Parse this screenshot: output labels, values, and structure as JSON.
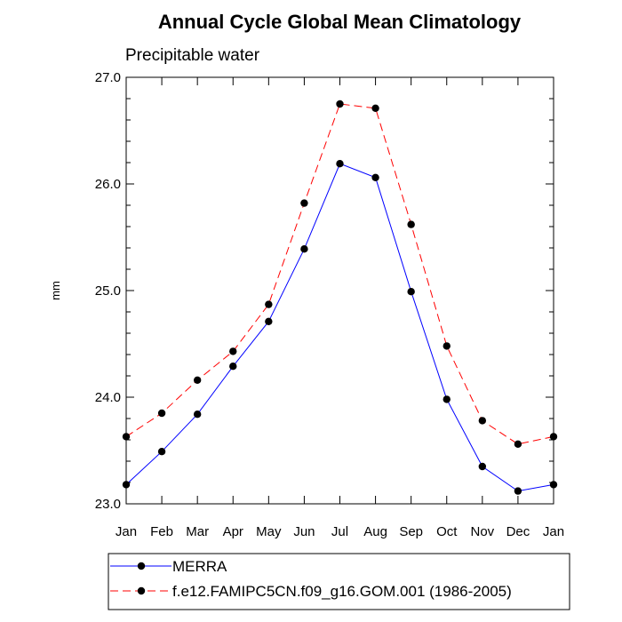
{
  "chart_data": {
    "type": "line",
    "title": "Annual Cycle Global Mean Climatology",
    "subtitle": "Precipitable water",
    "xlabel": "",
    "ylabel": "mm",
    "categories": [
      "Jan",
      "Feb",
      "Mar",
      "Apr",
      "May",
      "Jun",
      "Jul",
      "Aug",
      "Sep",
      "Oct",
      "Nov",
      "Dec",
      "Jan"
    ],
    "ylim": [
      23.0,
      27.0
    ],
    "yticks": [
      "23.0",
      "24.0",
      "25.0",
      "26.0",
      "27.0"
    ],
    "grid": false,
    "legend_position": "bottom",
    "series": [
      {
        "name": "MERRA",
        "color": "#0000ff",
        "dash": "solid",
        "values": [
          23.18,
          23.49,
          23.84,
          24.29,
          24.71,
          25.39,
          26.19,
          26.06,
          24.99,
          23.98,
          23.35,
          23.12,
          23.18
        ]
      },
      {
        "name": "f.e12.FAMIPC5CN.f09_g16.GOM.001 (1986-2005)",
        "color": "#ff0000",
        "dash": "dashed",
        "values": [
          23.63,
          23.85,
          24.16,
          24.43,
          24.87,
          25.82,
          26.75,
          26.71,
          25.62,
          24.48,
          23.78,
          23.56,
          23.63
        ]
      }
    ]
  }
}
